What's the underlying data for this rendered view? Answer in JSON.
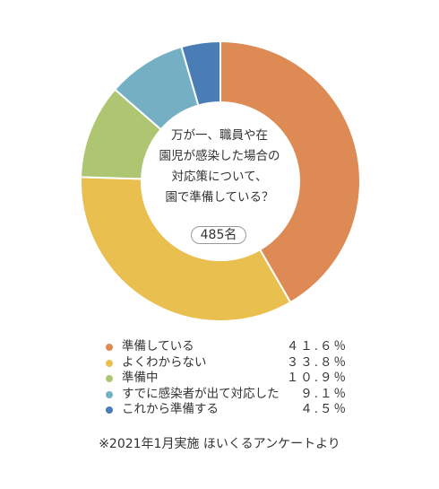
{
  "chart_data": {
    "type": "pie",
    "center_text": [
      "万が一、職員や在",
      "園児が感染した場合の",
      "対応策について、",
      "園で準備している？"
    ],
    "count_label": "485名",
    "categories": [
      "準備している",
      "よくわからない",
      "準備中",
      "すでに感染者が出て対応した",
      "これから準備する"
    ],
    "values": [
      41.6,
      33.8,
      10.9,
      9.1,
      4.5
    ],
    "value_labels": [
      "４１.６％",
      "３３.８％",
      "１０.９％",
      "９.１％",
      "４.５％"
    ],
    "colors": [
      "#DE8A55",
      "#E9C050",
      "#AEC672",
      "#74AFC4",
      "#4A7CB6"
    ],
    "style": "donut",
    "start_angle_deg": 0,
    "direction": "clockwise"
  },
  "footnote": "※2021年1月実施 ほいくるアンケートより"
}
